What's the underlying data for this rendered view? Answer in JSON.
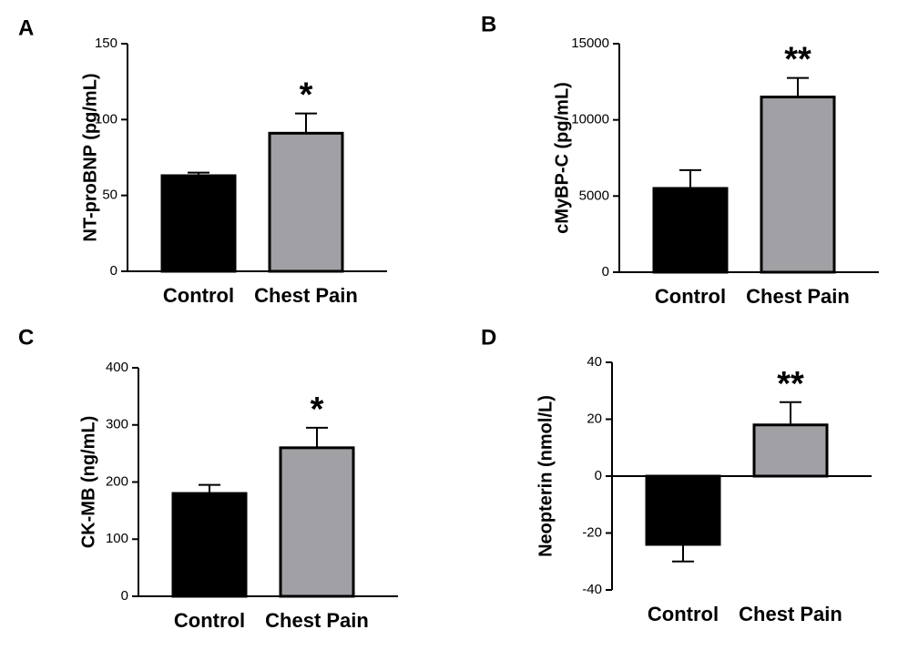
{
  "chart_data": [
    {
      "type": "bar",
      "panel_label": "A",
      "y_label": "NT-proBNP (pg/mL)",
      "categories": [
        "Control",
        "Chest Pain"
      ],
      "values": [
        63,
        91
      ],
      "errors": [
        2,
        13
      ],
      "colors": [
        "#000000",
        "#a0a0a5"
      ],
      "annotations": [
        null,
        "*"
      ],
      "ylim": [
        0,
        150
      ],
      "yticks": [
        0,
        50,
        100,
        150
      ]
    },
    {
      "type": "bar",
      "panel_label": "B",
      "y_label": "cMyBP-C (pg/mL)",
      "categories": [
        "Control",
        "Chest Pain"
      ],
      "values": [
        5500,
        11500
      ],
      "errors": [
        1200,
        1250
      ],
      "colors": [
        "#000000",
        "#a0a0a5"
      ],
      "annotations": [
        null,
        "**"
      ],
      "ylim": [
        0,
        15000
      ],
      "yticks": [
        0,
        5000,
        10000,
        15000
      ]
    },
    {
      "type": "bar",
      "panel_label": "C",
      "y_label": "CK-MB (ng/mL)",
      "categories": [
        "Control",
        "Chest Pain"
      ],
      "values": [
        180,
        260
      ],
      "errors": [
        15,
        35
      ],
      "colors": [
        "#000000",
        "#a0a0a5"
      ],
      "annotations": [
        null,
        "*"
      ],
      "ylim": [
        0,
        400
      ],
      "yticks": [
        0,
        100,
        200,
        300,
        400
      ]
    },
    {
      "type": "bar",
      "panel_label": "D",
      "y_label": "Neopterin (nmol/L)",
      "categories": [
        "Control",
        "Chest Pain"
      ],
      "values": [
        -24,
        18
      ],
      "errors": [
        6,
        8
      ],
      "colors": [
        "#000000",
        "#a0a0a5"
      ],
      "annotations": [
        null,
        "**"
      ],
      "ylim": [
        -40,
        40
      ],
      "yticks": [
        -40,
        -20,
        0,
        20,
        40
      ]
    }
  ]
}
